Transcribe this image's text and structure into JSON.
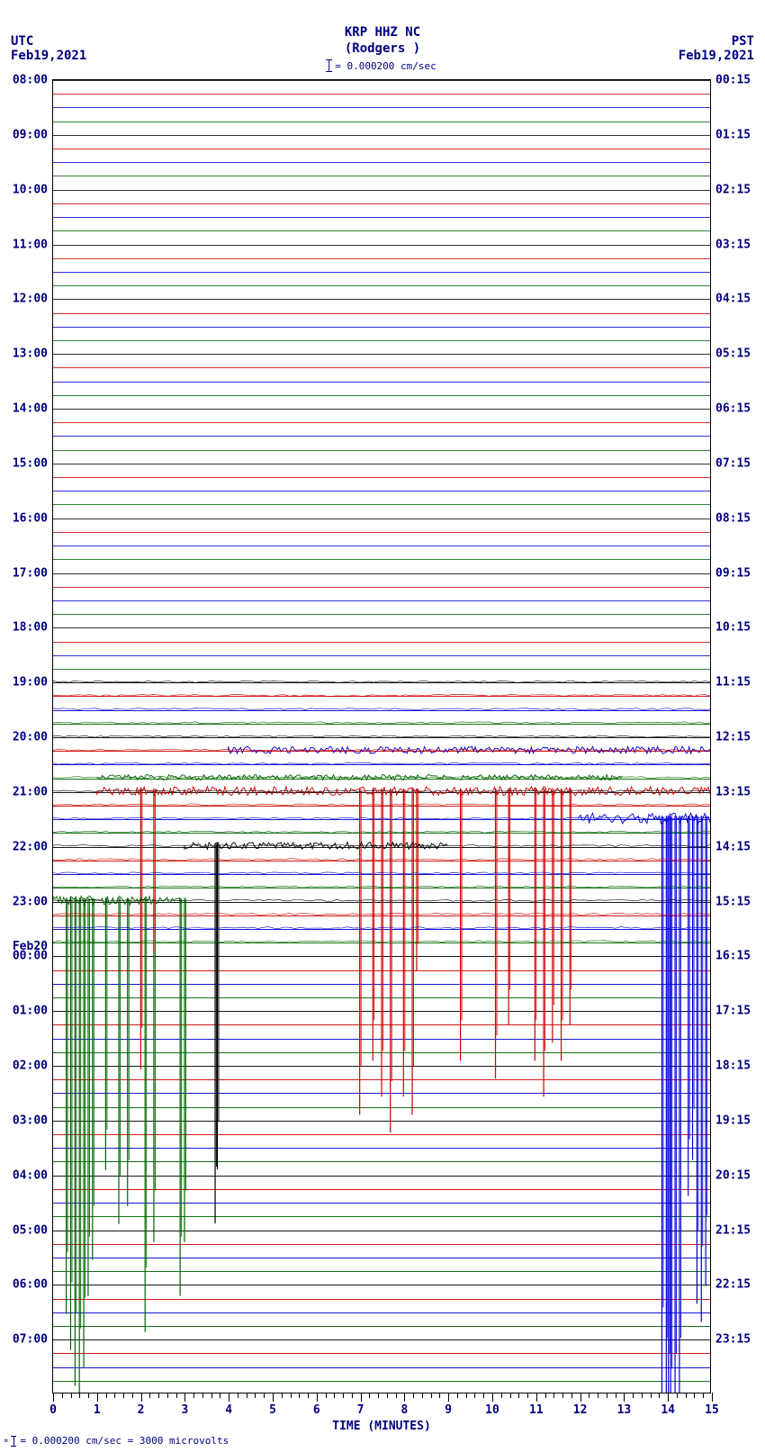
{
  "station": {
    "code": "KRP HHZ NC",
    "name": "(Rodgers )"
  },
  "left_tz": "UTC",
  "left_date": "Feb19,2021",
  "right_tz": "PST",
  "right_date": "Feb19,2021",
  "scale_text": "= 0.000200 cm/sec",
  "footer_text": "= 0.000200 cm/sec =    3000 microvolts",
  "xaxis": {
    "title": "TIME (MINUTES)",
    "min": 0,
    "max": 15,
    "major_step": 1,
    "minor_per_major": 4
  },
  "plot": {
    "n_traces": 96,
    "hour_label_every": 4,
    "left_hours_start": 8,
    "right_start": "00:15",
    "day_break_index": 64,
    "day_break_label": "Feb20",
    "colors": [
      "#000000",
      "#cc0000",
      "#0000d0",
      "#006400"
    ],
    "background": "#ffffff",
    "grid_color": "#000000"
  },
  "left_labels": [
    "08:00",
    "09:00",
    "10:00",
    "11:00",
    "12:00",
    "13:00",
    "14:00",
    "15:00",
    "16:00",
    "17:00",
    "18:00",
    "19:00",
    "20:00",
    "21:00",
    "22:00",
    "23:00",
    "00:00",
    "01:00",
    "02:00",
    "03:00",
    "04:00",
    "05:00",
    "06:00",
    "07:00"
  ],
  "right_labels": [
    "00:15",
    "01:15",
    "02:15",
    "03:15",
    "04:15",
    "05:15",
    "06:15",
    "07:15",
    "08:15",
    "09:15",
    "10:15",
    "11:15",
    "12:15",
    "13:15",
    "14:15",
    "15:15",
    "16:15",
    "17:15",
    "18:15",
    "19:15",
    "20:15",
    "21:15",
    "22:15",
    "23:15"
  ],
  "events": {
    "red": {
      "base_trace": 52,
      "spikes": [
        {
          "x": 2.0,
          "d": 310
        },
        {
          "x": 2.3,
          "d": 180
        },
        {
          "x": 7.0,
          "d": 360
        },
        {
          "x": 7.3,
          "d": 300
        },
        {
          "x": 7.5,
          "d": 340
        },
        {
          "x": 7.7,
          "d": 380
        },
        {
          "x": 8.0,
          "d": 340
        },
        {
          "x": 8.2,
          "d": 360
        },
        {
          "x": 8.3,
          "d": 200
        },
        {
          "x": 9.3,
          "d": 300
        },
        {
          "x": 10.1,
          "d": 320
        },
        {
          "x": 10.4,
          "d": 260
        },
        {
          "x": 11.0,
          "d": 300
        },
        {
          "x": 11.2,
          "d": 340
        },
        {
          "x": 11.4,
          "d": 280
        },
        {
          "x": 11.6,
          "d": 300
        },
        {
          "x": 11.8,
          "d": 260
        }
      ]
    },
    "blue": {
      "base_trace": 54,
      "spikes": [
        {
          "x": 13.9,
          "d": 640
        },
        {
          "x": 14.0,
          "d": 680
        },
        {
          "x": 14.05,
          "d": 700
        },
        {
          "x": 14.1,
          "d": 720
        },
        {
          "x": 14.2,
          "d": 700
        },
        {
          "x": 14.3,
          "d": 680
        },
        {
          "x": 14.5,
          "d": 420
        },
        {
          "x": 14.6,
          "d": 380
        },
        {
          "x": 14.7,
          "d": 540
        },
        {
          "x": 14.8,
          "d": 560
        },
        {
          "x": 14.9,
          "d": 520
        }
      ]
    },
    "green": {
      "base_trace": 60,
      "spikes": [
        {
          "x": 0.3,
          "d": 460
        },
        {
          "x": 0.4,
          "d": 500
        },
        {
          "x": 0.5,
          "d": 540
        },
        {
          "x": 0.6,
          "d": 560
        },
        {
          "x": 0.7,
          "d": 520
        },
        {
          "x": 0.8,
          "d": 440
        },
        {
          "x": 0.9,
          "d": 400
        },
        {
          "x": 1.2,
          "d": 300
        },
        {
          "x": 1.5,
          "d": 360
        },
        {
          "x": 1.7,
          "d": 340
        },
        {
          "x": 2.1,
          "d": 480
        },
        {
          "x": 2.3,
          "d": 380
        },
        {
          "x": 2.9,
          "d": 440
        },
        {
          "x": 3.0,
          "d": 380
        }
      ]
    },
    "black": {
      "base_trace": 56,
      "spikes": [
        {
          "x": 3.7,
          "d": 420
        },
        {
          "x": 3.75,
          "d": 360
        }
      ]
    }
  },
  "wiggle_bands": [
    {
      "trace": 49,
      "color": "#0000d0",
      "amp": 4,
      "from": 4,
      "to": 15
    },
    {
      "trace": 51,
      "color": "#006400",
      "amp": 3,
      "from": 1,
      "to": 13
    },
    {
      "trace": 52,
      "color": "#cc0000",
      "amp": 5,
      "from": 1,
      "to": 15
    },
    {
      "trace": 54,
      "color": "#0000d0",
      "amp": 6,
      "from": 12,
      "to": 15
    },
    {
      "trace": 56,
      "color": "#000000",
      "amp": 4,
      "from": 3,
      "to": 9
    },
    {
      "trace": 60,
      "color": "#006400",
      "amp": 5,
      "from": 0,
      "to": 3
    }
  ]
}
